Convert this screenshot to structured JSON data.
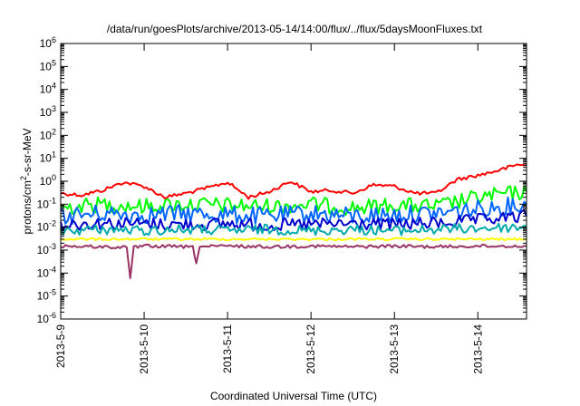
{
  "chart_data": {
    "type": "line",
    "title": "/data/run/goesPlots/archive/2013-05-14/14:00/flux/../flux/5daysMoonFluxes.txt",
    "xlabel": "Coordinated Universal Time (UTC)",
    "ylabel": {
      "base": "protons/cm",
      "sup": "2",
      "rest": "-s-sr-MeV"
    },
    "y_scale": "log",
    "ylim": [
      1e-06,
      1000000.0
    ],
    "y_ticks": [
      {
        "base": "10",
        "exp": "6",
        "value": 1000000.0
      },
      {
        "base": "10",
        "exp": "5",
        "value": 100000.0
      },
      {
        "base": "10",
        "exp": "4",
        "value": 10000.0
      },
      {
        "base": "10",
        "exp": "3",
        "value": 1000.0
      },
      {
        "base": "10",
        "exp": "2",
        "value": 100.0
      },
      {
        "base": "10",
        "exp": "1",
        "value": 10.0
      },
      {
        "base": "10",
        "exp": "0",
        "value": 1.0
      },
      {
        "base": "10",
        "exp": "-1",
        "value": 0.1
      },
      {
        "base": "10",
        "exp": "-2",
        "value": 0.01
      },
      {
        "base": "10",
        "exp": "-3",
        "value": 0.001
      },
      {
        "base": "10",
        "exp": "-4",
        "value": 0.0001
      },
      {
        "base": "10",
        "exp": "-5",
        "value": 1e-05
      },
      {
        "base": "10",
        "exp": "-6",
        "value": 1e-06
      }
    ],
    "xlim": [
      "2013-05-09T00:00",
      "2013-05-14T14:00"
    ],
    "x_ticks": [
      {
        "label": "2013-5-9",
        "value": "2013-05-09T00:00"
      },
      {
        "label": "2013-5-10",
        "value": "2013-05-10T00:00"
      },
      {
        "label": "2013-5-11",
        "value": "2013-05-11T00:00"
      },
      {
        "label": "2013-5-12",
        "value": "2013-05-12T00:00"
      },
      {
        "label": "2013-5-13",
        "value": "2013-05-13T00:00"
      },
      {
        "label": "2013-5-14",
        "value": "2013-05-14T00:00"
      }
    ],
    "grid": false,
    "legend": "none",
    "series": [
      {
        "color": "#ff0000",
        "x": [
          "2013-05-09T00:00",
          "2013-05-09T06:00",
          "2013-05-09T12:00",
          "2013-05-09T18:00",
          "2013-05-10T00:00",
          "2013-05-10T06:00",
          "2013-05-10T12:00",
          "2013-05-10T18:00",
          "2013-05-11T00:00",
          "2013-05-11T06:00",
          "2013-05-11T12:00",
          "2013-05-11T18:00",
          "2013-05-12T00:00",
          "2013-05-12T06:00",
          "2013-05-12T12:00",
          "2013-05-12T18:00",
          "2013-05-13T00:00",
          "2013-05-13T06:00",
          "2013-05-13T12:00",
          "2013-05-13T18:00",
          "2013-05-14T00:00",
          "2013-05-14T06:00",
          "2013-05-14T12:00",
          "2013-05-14T14:00"
        ],
        "values": [
          0.3,
          0.25,
          0.4,
          0.9,
          0.6,
          0.2,
          0.3,
          0.5,
          0.9,
          0.2,
          0.35,
          1.0,
          0.35,
          0.4,
          0.3,
          0.7,
          0.6,
          0.3,
          0.3,
          1.2,
          1.8,
          3.0,
          5.5,
          5.0
        ]
      },
      {
        "color": "#00ff00",
        "x": [
          "2013-05-09T00:00",
          "2013-05-09T12:00",
          "2013-05-10T00:00",
          "2013-05-10T12:00",
          "2013-05-11T00:00",
          "2013-05-11T12:00",
          "2013-05-12T00:00",
          "2013-05-12T12:00",
          "2013-05-13T00:00",
          "2013-05-13T12:00",
          "2013-05-14T00:00",
          "2013-05-14T14:00"
        ],
        "values": [
          0.07,
          0.1,
          0.08,
          0.1,
          0.09,
          0.08,
          0.1,
          0.07,
          0.09,
          0.08,
          0.2,
          0.35
        ]
      },
      {
        "color": "#0066ff",
        "x": [
          "2013-05-09T00:00",
          "2013-05-09T12:00",
          "2013-05-10T00:00",
          "2013-05-10T12:00",
          "2013-05-11T00:00",
          "2013-05-11T12:00",
          "2013-05-12T00:00",
          "2013-05-12T12:00",
          "2013-05-13T00:00",
          "2013-05-13T12:00",
          "2013-05-14T00:00",
          "2013-05-14T14:00"
        ],
        "values": [
          0.03,
          0.04,
          0.035,
          0.04,
          0.035,
          0.03,
          0.04,
          0.03,
          0.035,
          0.04,
          0.06,
          0.1
        ]
      },
      {
        "color": "#0000cc",
        "x": [
          "2013-05-09T00:00",
          "2013-05-09T12:00",
          "2013-05-10T00:00",
          "2013-05-10T12:00",
          "2013-05-11T00:00",
          "2013-05-11T12:00",
          "2013-05-12T00:00",
          "2013-05-12T12:00",
          "2013-05-13T00:00",
          "2013-05-13T12:00",
          "2013-05-14T00:00",
          "2013-05-14T14:00"
        ],
        "values": [
          0.013,
          0.015,
          0.014,
          0.013,
          0.014,
          0.012,
          0.013,
          0.014,
          0.013,
          0.015,
          0.02,
          0.03
        ]
      },
      {
        "color": "#00aaaa",
        "x": [
          "2013-05-09T00:00",
          "2013-05-09T12:00",
          "2013-05-10T00:00",
          "2013-05-10T12:00",
          "2013-05-11T00:00",
          "2013-05-11T12:00",
          "2013-05-12T00:00",
          "2013-05-12T12:00",
          "2013-05-13T00:00",
          "2013-05-13T12:00",
          "2013-05-14T00:00",
          "2013-05-14T14:00"
        ],
        "values": [
          0.007,
          0.008,
          0.007,
          0.008,
          0.007,
          0.008,
          0.007,
          0.008,
          0.007,
          0.008,
          0.009,
          0.01
        ]
      },
      {
        "color": "#ffff00",
        "x": [
          "2013-05-09T00:00",
          "2013-05-09T12:00",
          "2013-05-10T00:00",
          "2013-05-10T12:00",
          "2013-05-11T00:00",
          "2013-05-11T12:00",
          "2013-05-12T00:00",
          "2013-05-12T12:00",
          "2013-05-13T00:00",
          "2013-05-13T12:00",
          "2013-05-14T00:00",
          "2013-05-14T14:00"
        ],
        "values": [
          0.003,
          0.003,
          0.003,
          0.003,
          0.003,
          0.003,
          0.003,
          0.003,
          0.003,
          0.003,
          0.003,
          0.003
        ]
      },
      {
        "color": "#993366",
        "x": [
          "2013-05-09T00:00",
          "2013-05-09T12:00",
          "2013-05-09T19:00",
          "2013-05-09T20:00",
          "2013-05-09T21:00",
          "2013-05-10T00:00",
          "2013-05-10T12:00",
          "2013-05-10T14:00",
          "2013-05-10T15:00",
          "2013-05-10T16:00",
          "2013-05-11T00:00",
          "2013-05-11T12:00",
          "2013-05-12T00:00",
          "2013-05-12T12:00",
          "2013-05-13T00:00",
          "2013-05-13T12:00",
          "2013-05-14T00:00",
          "2013-05-14T14:00"
        ],
        "values": [
          0.0015,
          0.0014,
          0.0013,
          6e-05,
          0.0013,
          0.0015,
          0.0014,
          0.0013,
          0.0003,
          0.0014,
          0.0015,
          0.0014,
          0.0015,
          0.0014,
          0.0015,
          0.0014,
          0.0015,
          0.0015
        ]
      }
    ]
  }
}
